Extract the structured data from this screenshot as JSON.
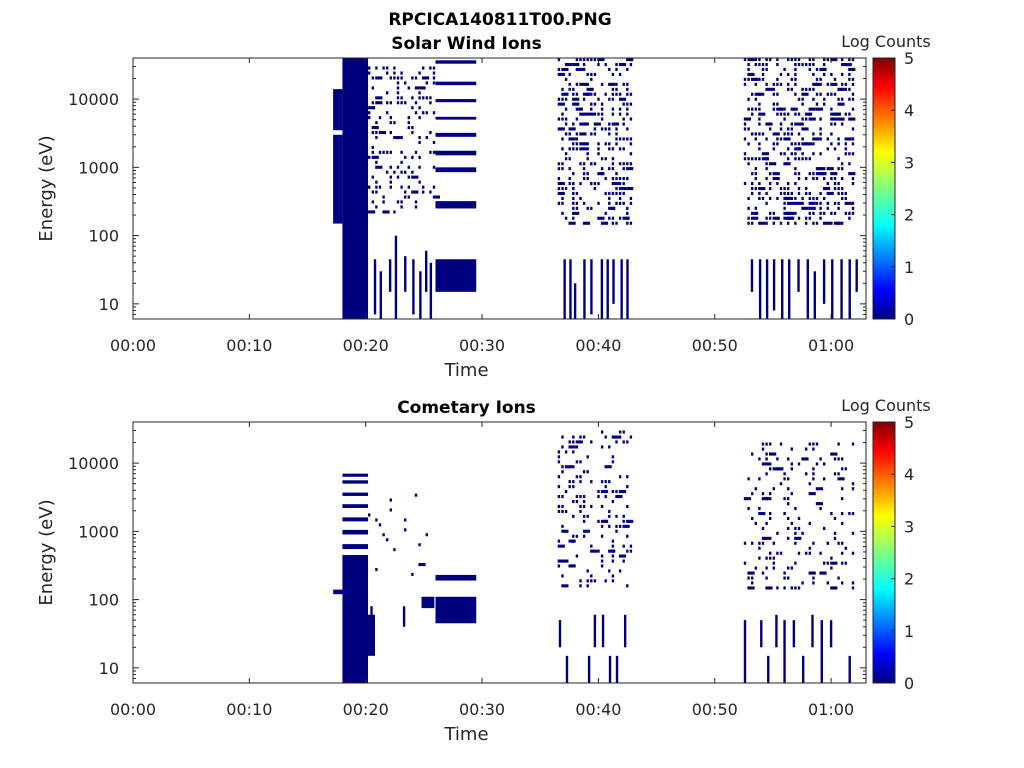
{
  "figure": {
    "title": "RPCICA140811T00.PNG"
  },
  "chart_data": [
    {
      "type": "heatmap",
      "title": "Solar Wind Ions",
      "xlabel": "Time",
      "ylabel": "Energy (eV)",
      "x_tick_labels": [
        "00:00",
        "00:10",
        "00:20",
        "00:30",
        "00:40",
        "00:50",
        "01:00"
      ],
      "x_tick_values_min": [
        0,
        10,
        20,
        30,
        40,
        50,
        60
      ],
      "xlim_min": [
        0,
        63
      ],
      "y_scale": "log",
      "y_tick_labels": [
        "10",
        "100",
        "1000",
        "10000"
      ],
      "y_tick_values": [
        10,
        100,
        1000,
        10000
      ],
      "ylim": [
        6,
        40000
      ],
      "colorbar": {
        "label": "Log Counts",
        "ticks": [
          "0",
          "1",
          "2",
          "3",
          "4",
          "5"
        ],
        "range": [
          0,
          5
        ],
        "colormap": "jet"
      },
      "value_color": "#00007f",
      "blocks": [
        {
          "t": [
            18.0,
            20.2
          ],
          "e": [
            6,
            40000
          ]
        },
        {
          "t": [
            17.2,
            18.0
          ],
          "e": [
            150,
            3000
          ]
        },
        {
          "t": [
            17.2,
            18.0
          ],
          "e": [
            3500,
            14000
          ]
        },
        {
          "t": [
            26.0,
            29.5
          ],
          "e": [
            15,
            45
          ]
        },
        {
          "t": [
            26.0,
            29.5
          ],
          "e": [
            250,
            320
          ]
        },
        {
          "t": [
            26.0,
            29.5
          ],
          "e": [
            850,
            1000
          ]
        },
        {
          "t": [
            26.0,
            29.5
          ],
          "e": [
            1500,
            1750
          ]
        },
        {
          "t": [
            26.0,
            29.5
          ],
          "e": [
            2800,
            3200
          ]
        },
        {
          "t": [
            26.0,
            29.5
          ],
          "e": [
            5000,
            5500
          ]
        },
        {
          "t": [
            26.0,
            29.5
          ],
          "e": [
            9000,
            10000
          ]
        },
        {
          "t": [
            26.0,
            29.5
          ],
          "e": [
            16000,
            18000
          ]
        },
        {
          "t": [
            26.0,
            29.5
          ],
          "e": [
            33000,
            37000
          ]
        }
      ],
      "speckle_regions": [
        {
          "t": [
            20.2,
            26.0
          ],
          "e": [
            200,
            30000
          ],
          "density": 0.3,
          "seed": 11
        },
        {
          "t": [
            36.5,
            42.7
          ],
          "e": [
            150,
            40000
          ],
          "density": 0.38,
          "seed": 23
        },
        {
          "t": [
            52.5,
            62.0
          ],
          "e": [
            150,
            40000
          ],
          "density": 0.4,
          "seed": 37
        }
      ],
      "vlines": [
        {
          "t": 20.8,
          "e": [
            7,
            45
          ]
        },
        {
          "t": 21.3,
          "e": [
            6,
            30
          ]
        },
        {
          "t": 22.1,
          "e": [
            15,
            45
          ]
        },
        {
          "t": 22.6,
          "e": [
            6,
            100
          ]
        },
        {
          "t": 23.4,
          "e": [
            15,
            50
          ]
        },
        {
          "t": 24.1,
          "e": [
            7,
            45
          ]
        },
        {
          "t": 24.7,
          "e": [
            6,
            30
          ]
        },
        {
          "t": 25.2,
          "e": [
            15,
            60
          ]
        },
        {
          "t": 25.6,
          "e": [
            6,
            40
          ]
        },
        {
          "t": 37.1,
          "e": [
            6,
            45
          ]
        },
        {
          "t": 37.6,
          "e": [
            6,
            45
          ]
        },
        {
          "t": 38.0,
          "e": [
            6,
            20
          ]
        },
        {
          "t": 38.8,
          "e": [
            6,
            45
          ]
        },
        {
          "t": 39.4,
          "e": [
            7,
            45
          ]
        },
        {
          "t": 40.3,
          "e": [
            6,
            45
          ]
        },
        {
          "t": 40.8,
          "e": [
            6,
            45
          ]
        },
        {
          "t": 41.3,
          "e": [
            10,
            45
          ]
        },
        {
          "t": 42.0,
          "e": [
            6,
            45
          ]
        },
        {
          "t": 42.5,
          "e": [
            6,
            45
          ]
        },
        {
          "t": 53.2,
          "e": [
            15,
            45
          ]
        },
        {
          "t": 53.9,
          "e": [
            6,
            45
          ]
        },
        {
          "t": 54.5,
          "e": [
            6,
            45
          ]
        },
        {
          "t": 55.1,
          "e": [
            8,
            45
          ]
        },
        {
          "t": 55.8,
          "e": [
            6,
            45
          ]
        },
        {
          "t": 56.4,
          "e": [
            6,
            45
          ]
        },
        {
          "t": 57.2,
          "e": [
            15,
            45
          ]
        },
        {
          "t": 58.0,
          "e": [
            6,
            45
          ]
        },
        {
          "t": 58.6,
          "e": [
            6,
            30
          ]
        },
        {
          "t": 59.4,
          "e": [
            10,
            45
          ]
        },
        {
          "t": 60.1,
          "e": [
            6,
            45
          ]
        },
        {
          "t": 60.9,
          "e": [
            6,
            45
          ]
        },
        {
          "t": 61.6,
          "e": [
            6,
            45
          ]
        },
        {
          "t": 62.2,
          "e": [
            15,
            45
          ]
        }
      ]
    },
    {
      "type": "heatmap",
      "title": "Cometary Ions",
      "xlabel": "Time",
      "ylabel": "Energy (eV)",
      "x_tick_labels": [
        "00:00",
        "00:10",
        "00:20",
        "00:30",
        "00:40",
        "00:50",
        "01:00"
      ],
      "x_tick_values_min": [
        0,
        10,
        20,
        30,
        40,
        50,
        60
      ],
      "xlim_min": [
        0,
        63
      ],
      "y_scale": "log",
      "y_tick_labels": [
        "10",
        "100",
        "1000",
        "10000"
      ],
      "y_tick_values": [
        10,
        100,
        1000,
        10000
      ],
      "ylim": [
        6,
        40000
      ],
      "colorbar": {
        "label": "Log Counts",
        "ticks": [
          "0",
          "1",
          "2",
          "3",
          "4",
          "5"
        ],
        "range": [
          0,
          5
        ],
        "colormap": "jet"
      },
      "value_color": "#00007f",
      "blocks": [
        {
          "t": [
            18.0,
            20.2
          ],
          "e": [
            6,
            450
          ]
        },
        {
          "t": [
            17.2,
            18.0
          ],
          "e": [
            120,
            140
          ]
        },
        {
          "t": [
            20.2,
            20.8
          ],
          "e": [
            15,
            60
          ]
        },
        {
          "t": [
            26.0,
            29.5
          ],
          "e": [
            45,
            110
          ]
        },
        {
          "t": [
            26.0,
            29.5
          ],
          "e": [
            190,
            230
          ]
        },
        {
          "t": [
            24.8,
            25.9
          ],
          "e": [
            75,
            110
          ]
        },
        {
          "t": [
            18.0,
            20.2
          ],
          "e": [
            550,
            650
          ]
        },
        {
          "t": [
            18.0,
            20.2
          ],
          "e": [
            900,
            1050
          ]
        },
        {
          "t": [
            18.0,
            20.2
          ],
          "e": [
            1400,
            1600
          ]
        },
        {
          "t": [
            18.0,
            20.2
          ],
          "e": [
            2200,
            2500
          ]
        },
        {
          "t": [
            18.0,
            20.2
          ],
          "e": [
            3300,
            3700
          ]
        },
        {
          "t": [
            18.0,
            20.2
          ],
          "e": [
            5000,
            5600
          ]
        },
        {
          "t": [
            18.0,
            20.2
          ],
          "e": [
            6300,
            7000
          ]
        }
      ],
      "speckle_regions": [
        {
          "t": [
            20.2,
            26.0
          ],
          "e": [
            150,
            5000
          ],
          "density": 0.03,
          "seed": 51
        },
        {
          "t": [
            36.5,
            42.7
          ],
          "e": [
            150,
            30000
          ],
          "density": 0.2,
          "seed": 63
        },
        {
          "t": [
            52.5,
            62.0
          ],
          "e": [
            150,
            20000
          ],
          "density": 0.22,
          "seed": 77
        }
      ],
      "vlines": [
        {
          "t": 20.5,
          "e": [
            50,
            80
          ]
        },
        {
          "t": 23.3,
          "e": [
            40,
            80
          ]
        },
        {
          "t": 36.7,
          "e": [
            20,
            50
          ]
        },
        {
          "t": 37.3,
          "e": [
            6,
            15
          ]
        },
        {
          "t": 39.2,
          "e": [
            6,
            15
          ]
        },
        {
          "t": 39.7,
          "e": [
            20,
            60
          ]
        },
        {
          "t": 40.4,
          "e": [
            20,
            60
          ]
        },
        {
          "t": 41.0,
          "e": [
            6,
            15
          ]
        },
        {
          "t": 41.6,
          "e": [
            6,
            15
          ]
        },
        {
          "t": 42.3,
          "e": [
            20,
            60
          ]
        },
        {
          "t": 52.6,
          "e": [
            6,
            50
          ]
        },
        {
          "t": 54.0,
          "e": [
            20,
            50
          ]
        },
        {
          "t": 54.6,
          "e": [
            6,
            15
          ]
        },
        {
          "t": 55.3,
          "e": [
            20,
            60
          ]
        },
        {
          "t": 56.0,
          "e": [
            6,
            50
          ]
        },
        {
          "t": 56.8,
          "e": [
            20,
            50
          ]
        },
        {
          "t": 57.6,
          "e": [
            6,
            15
          ]
        },
        {
          "t": 58.4,
          "e": [
            20,
            60
          ]
        },
        {
          "t": 59.2,
          "e": [
            6,
            50
          ]
        },
        {
          "t": 60.0,
          "e": [
            20,
            50
          ]
        },
        {
          "t": 61.6,
          "e": [
            6,
            15
          ]
        }
      ]
    }
  ]
}
